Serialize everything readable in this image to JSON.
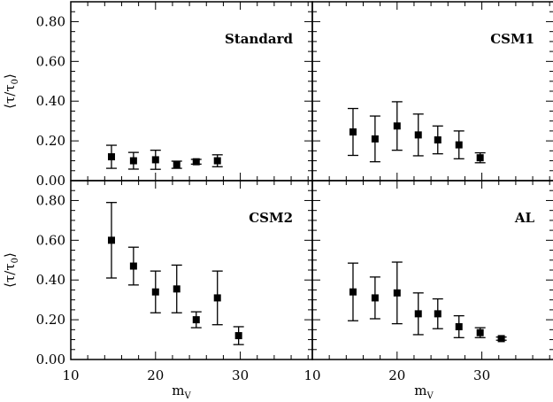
{
  "figure": {
    "ylabel_main": "⟨τ/τ",
    "ylabel_sub": "0",
    "ylabel_close": "⟩",
    "xlabel_main": "m",
    "xlabel_sub": "V"
  },
  "chart_data": [
    {
      "type": "scatter",
      "label": "Standard",
      "xlim": [
        10,
        38.5
      ],
      "ylim": [
        0,
        0.9
      ],
      "xticks": [
        10,
        20,
        30
      ],
      "yticks": [
        0.0,
        0.2,
        0.4,
        0.6,
        0.8
      ],
      "ytick_labels": [
        "0.00",
        "0.20",
        "0.40",
        "0.60",
        "0.80"
      ],
      "show_xtick_labels": false,
      "show_ytick_labels": true,
      "points": [
        {
          "x": 14.8,
          "y": 0.12,
          "err": 0.058
        },
        {
          "x": 17.4,
          "y": 0.1,
          "err": 0.042
        },
        {
          "x": 20.0,
          "y": 0.105,
          "err": 0.048
        },
        {
          "x": 22.5,
          "y": 0.08,
          "err": 0.018
        },
        {
          "x": 24.8,
          "y": 0.095,
          "err": 0.012
        },
        {
          "x": 27.3,
          "y": 0.1,
          "err": 0.03
        }
      ]
    },
    {
      "type": "scatter",
      "label": "CSM1",
      "xlim": [
        10,
        38.5
      ],
      "ylim": [
        0,
        0.9
      ],
      "xticks": [
        10,
        20,
        30
      ],
      "yticks": [
        0.0,
        0.2,
        0.4,
        0.6,
        0.8
      ],
      "ytick_labels": [
        "0.00",
        "0.20",
        "0.40",
        "0.60",
        "0.80"
      ],
      "show_xtick_labels": false,
      "show_ytick_labels": false,
      "points": [
        {
          "x": 14.8,
          "y": 0.245,
          "err": 0.118
        },
        {
          "x": 17.4,
          "y": 0.21,
          "err": 0.115
        },
        {
          "x": 20.0,
          "y": 0.275,
          "err": 0.122
        },
        {
          "x": 22.5,
          "y": 0.23,
          "err": 0.105
        },
        {
          "x": 24.8,
          "y": 0.205,
          "err": 0.07
        },
        {
          "x": 27.3,
          "y": 0.18,
          "err": 0.07
        },
        {
          "x": 29.8,
          "y": 0.115,
          "err": 0.025
        }
      ]
    },
    {
      "type": "scatter",
      "label": "CSM2",
      "xlim": [
        10,
        38.5
      ],
      "ylim": [
        0,
        0.9
      ],
      "xticks": [
        10,
        20,
        30
      ],
      "yticks": [
        0.0,
        0.2,
        0.4,
        0.6,
        0.8
      ],
      "ytick_labels": [
        "0.00",
        "0.20",
        "0.40",
        "0.60",
        "0.80"
      ],
      "show_xtick_labels": true,
      "show_ytick_labels": true,
      "points": [
        {
          "x": 14.8,
          "y": 0.6,
          "err": 0.19
        },
        {
          "x": 17.4,
          "y": 0.47,
          "err": 0.095
        },
        {
          "x": 20.0,
          "y": 0.34,
          "err": 0.105
        },
        {
          "x": 22.5,
          "y": 0.355,
          "err": 0.12
        },
        {
          "x": 24.8,
          "y": 0.2,
          "err": 0.04
        },
        {
          "x": 27.3,
          "y": 0.31,
          "err": 0.135
        },
        {
          "x": 29.8,
          "y": 0.12,
          "err": 0.045
        }
      ]
    },
    {
      "type": "scatter",
      "label": "AL",
      "xlim": [
        10,
        38.5
      ],
      "ylim": [
        0,
        0.9
      ],
      "xticks": [
        10,
        20,
        30
      ],
      "yticks": [
        0.0,
        0.2,
        0.4,
        0.6,
        0.8
      ],
      "ytick_labels": [
        "0.00",
        "0.20",
        "0.40",
        "0.60",
        "0.80"
      ],
      "show_xtick_labels": true,
      "show_ytick_labels": false,
      "points": [
        {
          "x": 14.8,
          "y": 0.34,
          "err": 0.145
        },
        {
          "x": 17.4,
          "y": 0.31,
          "err": 0.105
        },
        {
          "x": 20.0,
          "y": 0.335,
          "err": 0.155
        },
        {
          "x": 22.5,
          "y": 0.23,
          "err": 0.105
        },
        {
          "x": 24.8,
          "y": 0.23,
          "err": 0.075
        },
        {
          "x": 27.3,
          "y": 0.165,
          "err": 0.055
        },
        {
          "x": 29.8,
          "y": 0.135,
          "err": 0.025
        },
        {
          "x": 32.3,
          "y": 0.105,
          "err": 0.008
        }
      ]
    }
  ]
}
